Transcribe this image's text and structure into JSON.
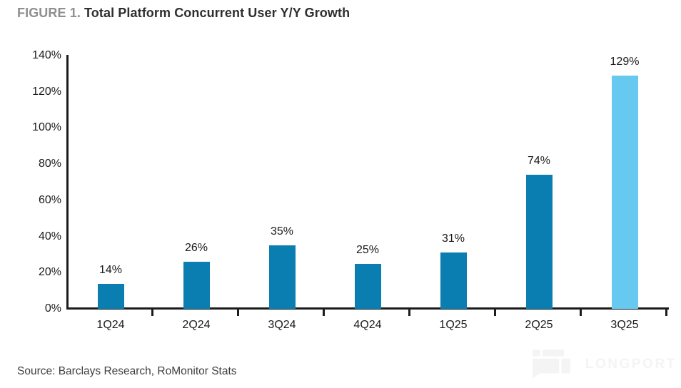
{
  "title": {
    "figure_label": "FIGURE 1.",
    "text": "Total Platform Concurrent User Y/Y Growth"
  },
  "chart_data": {
    "type": "bar",
    "title": "Total Platform Concurrent User Y/Y Growth",
    "categories": [
      "1Q24",
      "2Q24",
      "3Q24",
      "4Q24",
      "1Q25",
      "2Q25",
      "3Q25"
    ],
    "values": [
      14,
      26,
      35,
      25,
      31,
      74,
      129
    ],
    "value_labels": [
      "14%",
      "26%",
      "35%",
      "25%",
      "31%",
      "74%",
      "129%"
    ],
    "highlight_index": 6,
    "xlabel": "",
    "ylabel": "",
    "ylim": [
      0,
      140
    ],
    "ytick_step": 20,
    "ytick_suffix": "%",
    "ytick_labels": [
      "0%",
      "20%",
      "40%",
      "60%",
      "80%",
      "100%",
      "120%",
      "140%"
    ],
    "grid": false,
    "legend": "none",
    "colors": {
      "bar_primary": "#0a7db1",
      "bar_highlight": "#67c9f0",
      "axis": "#1c1c1c",
      "label_text": "#1a1a1a"
    }
  },
  "source": {
    "text": "Source: Barclays Research, RoMonitor Stats"
  },
  "watermark": {
    "text": "LONGPORT",
    "color": "#f4f4f4"
  }
}
